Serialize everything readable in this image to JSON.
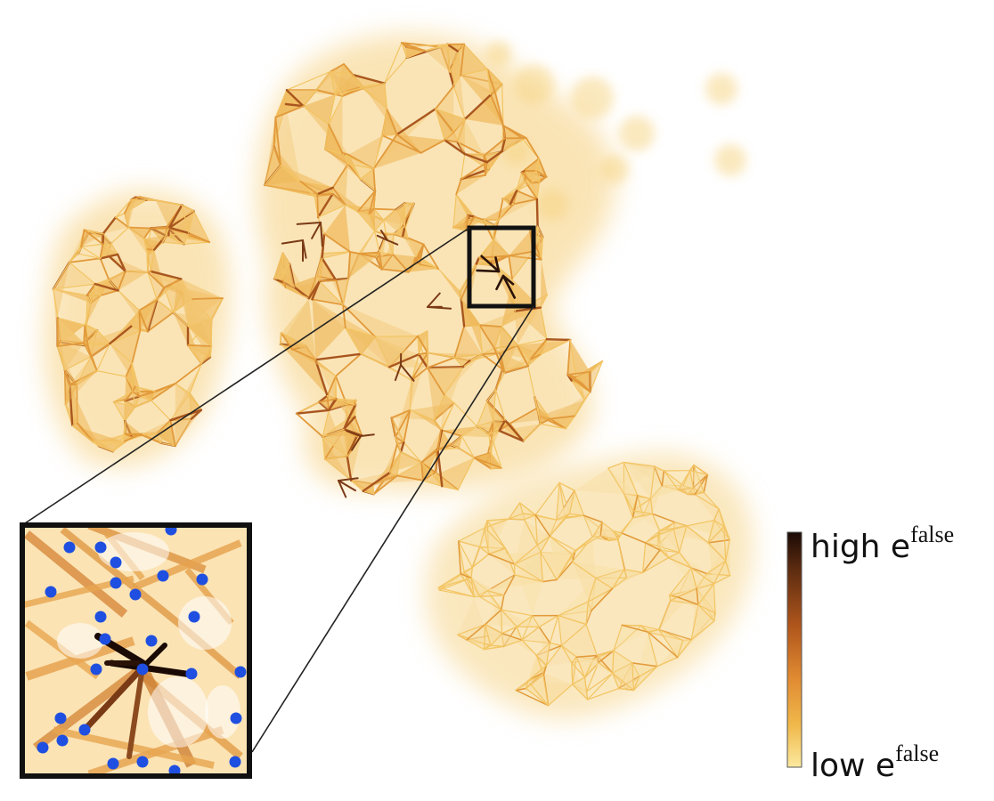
{
  "colorbar": {
    "high": {
      "text": "high e",
      "sup": "false"
    },
    "low": {
      "text": "low e",
      "sup": "false"
    },
    "colors": [
      "#1a0a05",
      "#5a2a10",
      "#b0561c",
      "#e08a32",
      "#f0b84a",
      "#fbe9a0"
    ]
  },
  "palette": {
    "edge_light": "#f3c564",
    "edge_mid": "#e29a3b",
    "edge_dark": "#a9561f",
    "edge_darkest": "#2a1208",
    "node": "#1f4fe0"
  }
}
